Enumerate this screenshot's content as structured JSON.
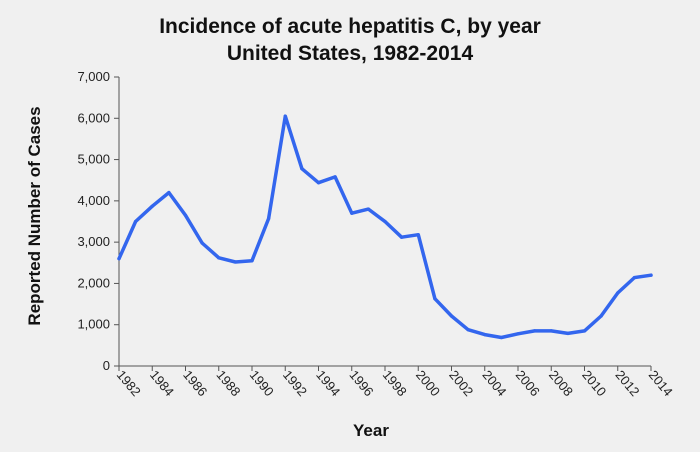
{
  "chart_data": {
    "type": "line",
    "title": "Incidence of acute hepatitis C, by year",
    "subtitle": "United States, 1982-2014",
    "xlabel": "Year",
    "ylabel": "Reported Number of Cases",
    "xlim": [
      1982,
      2014
    ],
    "ylim": [
      0,
      7000
    ],
    "x_ticks": [
      1982,
      1984,
      1986,
      1988,
      1990,
      1992,
      1994,
      1996,
      1998,
      2000,
      2002,
      2004,
      2006,
      2008,
      2010,
      2012,
      2014
    ],
    "y_ticks": [
      0,
      1000,
      2000,
      3000,
      4000,
      5000,
      6000,
      7000
    ],
    "y_tick_labels": [
      "0",
      "1,000",
      "2,000",
      "3,000",
      "4,000",
      "5,000",
      "6,000",
      "7,000"
    ],
    "grid": false,
    "legend": "none",
    "line_color": "#3366ee",
    "series": [
      {
        "x": [
          1982,
          1983,
          1984,
          1985,
          1986,
          1987,
          1988,
          1989,
          1990,
          1991,
          1992,
          1993,
          1994,
          1995,
          1996,
          1997,
          1998,
          1999,
          2000,
          2001,
          2002,
          2003,
          2004,
          2005,
          2006,
          2007,
          2008,
          2009,
          2010,
          2011,
          2012,
          2013,
          2014
        ],
        "values": [
          2600,
          3500,
          3870,
          4200,
          3650,
          2980,
          2620,
          2520,
          2550,
          3570,
          6050,
          4780,
          4440,
          4580,
          3700,
          3800,
          3500,
          3120,
          3180,
          1630,
          1210,
          880,
          760,
          690,
          780,
          850,
          850,
          790,
          850,
          1210,
          1770,
          2140,
          2200
        ]
      }
    ]
  }
}
